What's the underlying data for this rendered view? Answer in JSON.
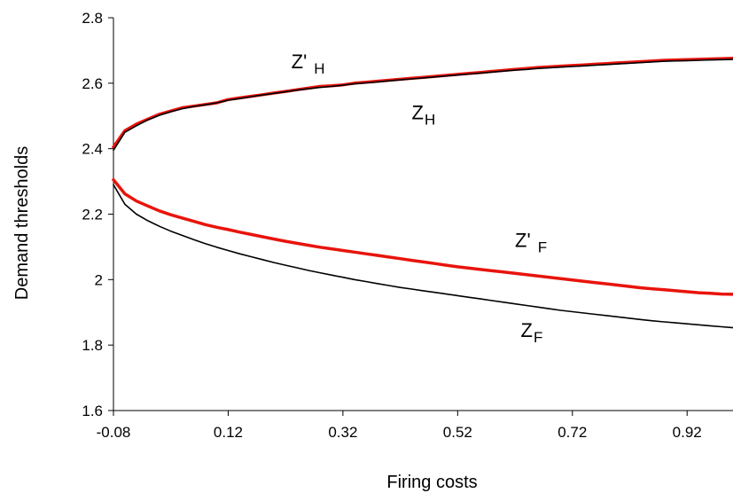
{
  "chart_data": {
    "type": "line",
    "xlabel": "Firing costs",
    "ylabel": "Demand thresholds",
    "xlim": [
      -0.08,
      1.0
    ],
    "ylim": [
      1.6,
      2.8
    ],
    "x_ticks": [
      "-0.08",
      "0.12",
      "0.32",
      "0.52",
      "0.72",
      "0.92"
    ],
    "y_ticks": [
      "1.6",
      "1.8",
      "2",
      "2.2",
      "2.4",
      "2.6",
      "2.8"
    ],
    "x": [
      -0.08,
      -0.06,
      -0.04,
      -0.02,
      0.0,
      0.02,
      0.04,
      0.06,
      0.08,
      0.1,
      0.12,
      0.14,
      0.16,
      0.18,
      0.2,
      0.22,
      0.24,
      0.26,
      0.28,
      0.3,
      0.32,
      0.34,
      0.36,
      0.38,
      0.4,
      0.42,
      0.44,
      0.46,
      0.48,
      0.5,
      0.52,
      0.54,
      0.56,
      0.58,
      0.6,
      0.62,
      0.64,
      0.66,
      0.68,
      0.7,
      0.72,
      0.74,
      0.76,
      0.78,
      0.8,
      0.82,
      0.84,
      0.86,
      0.88,
      0.9,
      0.92,
      0.94,
      0.96,
      0.98,
      1.0
    ],
    "series": [
      {
        "color": "#e8140c",
        "values": [
          2.405,
          2.455,
          2.475,
          2.49,
          2.505,
          2.515,
          2.525,
          2.53,
          2.535,
          2.54,
          2.55,
          2.555,
          2.56,
          2.565,
          2.57,
          2.575,
          2.58,
          2.585,
          2.59,
          2.592,
          2.595,
          2.6,
          2.603,
          2.606,
          2.609,
          2.612,
          2.615,
          2.618,
          2.621,
          2.624,
          2.627,
          2.63,
          2.633,
          2.636,
          2.639,
          2.642,
          2.645,
          2.648,
          2.65,
          2.652,
          2.654,
          2.656,
          2.658,
          2.66,
          2.662,
          2.664,
          2.666,
          2.668,
          2.67,
          2.671,
          2.672,
          2.673,
          2.674,
          2.675,
          2.676
        ]
      },
      {
        "color": "#000000",
        "values": [
          2.395,
          2.45,
          2.47,
          2.488,
          2.502,
          2.513,
          2.522,
          2.529,
          2.534,
          2.54,
          2.548,
          2.553,
          2.559,
          2.564,
          2.569,
          2.574,
          2.579,
          2.583,
          2.587,
          2.59,
          2.594,
          2.598,
          2.601,
          2.604,
          2.607,
          2.61,
          2.613,
          2.616,
          2.619,
          2.622,
          2.625,
          2.628,
          2.631,
          2.634,
          2.637,
          2.64,
          2.642,
          2.645,
          2.647,
          2.649,
          2.651,
          2.653,
          2.655,
          2.657,
          2.659,
          2.661,
          2.663,
          2.665,
          2.667,
          2.668,
          2.669,
          2.67,
          2.671,
          2.672,
          2.673
        ]
      },
      {
        "color": "#e8140c",
        "values": [
          2.305,
          2.262,
          2.24,
          2.225,
          2.21,
          2.198,
          2.188,
          2.178,
          2.168,
          2.16,
          2.153,
          2.145,
          2.138,
          2.131,
          2.124,
          2.117,
          2.111,
          2.105,
          2.099,
          2.094,
          2.089,
          2.084,
          2.079,
          2.074,
          2.069,
          2.064,
          2.059,
          2.054,
          2.049,
          2.044,
          2.039,
          2.035,
          2.031,
          2.027,
          2.023,
          2.019,
          2.015,
          2.011,
          2.007,
          2.003,
          1.999,
          1.995,
          1.991,
          1.987,
          1.983,
          1.979,
          1.975,
          1.972,
          1.969,
          1.966,
          1.963,
          1.96,
          1.958,
          1.956,
          1.955
        ]
      },
      {
        "color": "#000000",
        "values": [
          2.29,
          2.23,
          2.2,
          2.18,
          2.163,
          2.148,
          2.135,
          2.122,
          2.11,
          2.099,
          2.089,
          2.079,
          2.07,
          2.061,
          2.052,
          2.044,
          2.036,
          2.028,
          2.021,
          2.014,
          2.007,
          2.0,
          1.994,
          1.988,
          1.982,
          1.976,
          1.971,
          1.966,
          1.961,
          1.956,
          1.951,
          1.946,
          1.941,
          1.936,
          1.931,
          1.926,
          1.921,
          1.916,
          1.911,
          1.906,
          1.902,
          1.898,
          1.894,
          1.89,
          1.886,
          1.882,
          1.878,
          1.874,
          1.871,
          1.868,
          1.865,
          1.862,
          1.859,
          1.856,
          1.853
        ]
      }
    ],
    "annotations": [
      {
        "main": "Z'",
        "sub": "H",
        "x": 0.23,
        "y": 2.645
      },
      {
        "main": "Z",
        "sub": "H",
        "x": 0.44,
        "y": 2.49
      },
      {
        "main": "Z'",
        "sub": "F",
        "x": 0.62,
        "y": 2.1
      },
      {
        "main": "Z",
        "sub": "F",
        "x": 0.63,
        "y": 1.825
      }
    ],
    "grid": false,
    "legend": "none"
  }
}
